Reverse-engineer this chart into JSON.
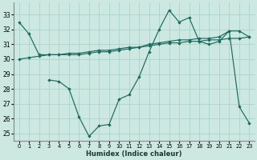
{
  "xlabel": "Humidex (Indice chaleur)",
  "bg_color": "#cce8e0",
  "grid_color": "#aad4cc",
  "line_color": "#1a6b5e",
  "ylim": [
    24.5,
    33.8
  ],
  "xlim": [
    -0.5,
    23.5
  ],
  "yticks": [
    25,
    26,
    27,
    28,
    29,
    30,
    31,
    32,
    33
  ],
  "xticks": [
    0,
    1,
    2,
    3,
    4,
    5,
    6,
    7,
    8,
    9,
    10,
    11,
    12,
    13,
    14,
    15,
    16,
    17,
    18,
    19,
    20,
    21,
    22,
    23
  ],
  "line1_x": [
    0,
    1,
    2,
    3,
    4,
    5,
    6,
    7,
    8,
    9,
    10,
    11,
    12,
    13,
    14,
    15,
    16,
    17,
    18,
    19,
    20,
    21,
    22,
    23
  ],
  "line1_y": [
    30.0,
    30.1,
    30.2,
    30.3,
    30.3,
    30.4,
    30.4,
    30.5,
    30.6,
    30.6,
    30.7,
    30.8,
    30.8,
    30.9,
    31.0,
    31.1,
    31.1,
    31.2,
    31.2,
    31.3,
    31.3,
    31.4,
    31.4,
    31.5
  ],
  "line2_x": [
    0,
    1,
    2,
    3,
    4,
    5,
    6,
    7,
    8,
    9,
    10,
    11,
    12,
    13,
    14,
    15,
    16,
    17,
    18,
    19,
    20,
    21,
    22,
    23
  ],
  "line2_y": [
    32.5,
    31.7,
    30.3,
    30.3,
    30.3,
    30.3,
    30.3,
    30.4,
    30.5,
    30.5,
    30.6,
    30.7,
    30.8,
    31.0,
    31.1,
    31.2,
    31.3,
    31.3,
    31.4,
    31.4,
    31.5,
    31.9,
    31.9,
    31.5
  ],
  "line3_x": [
    3,
    4,
    5,
    6,
    7,
    8,
    9,
    10,
    11,
    12,
    13,
    14,
    15,
    16,
    17,
    18,
    19,
    20,
    21,
    22,
    23
  ],
  "line3_y": [
    28.6,
    28.5,
    28.0,
    26.1,
    24.8,
    25.5,
    25.6,
    27.3,
    27.6,
    28.8,
    30.5,
    32.0,
    33.3,
    32.5,
    32.8,
    31.2,
    31.0,
    31.2,
    31.9,
    26.8,
    25.7
  ]
}
